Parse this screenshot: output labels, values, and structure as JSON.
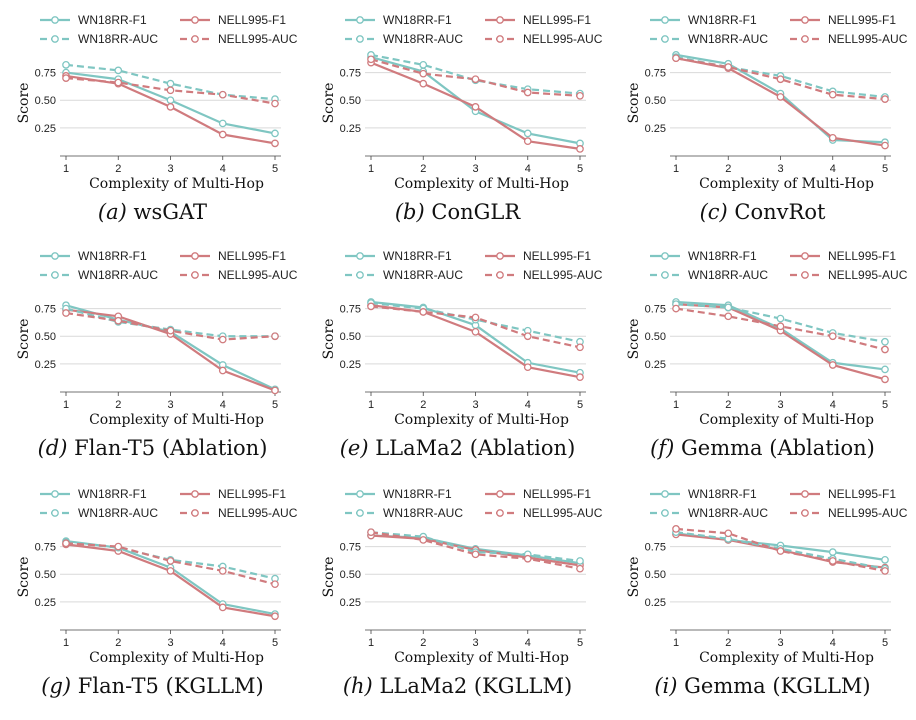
{
  "colors": {
    "wn": "#7fc6c2",
    "nell": "#d07b7e",
    "grid": "#d9d9d9",
    "axis": "#444444"
  },
  "chart_data": [
    {
      "type": "line",
      "caption_label": "(a)",
      "caption_title": "wsGAT",
      "x": [
        1,
        2,
        3,
        4,
        5
      ],
      "xlabel": "Complexity of Multi-Hop",
      "ylabel": "Score",
      "yticks": [
        "0.25",
        "0.50",
        "0.75"
      ],
      "ylim": [
        0.05,
        0.9
      ],
      "grid": "y",
      "series": [
        {
          "name": "WN18RR-F1",
          "style": "solid",
          "color": "#7fc6c2",
          "values": [
            0.75,
            0.69,
            0.5,
            0.29,
            0.2
          ]
        },
        {
          "name": "NELL995-F1",
          "style": "solid",
          "color": "#d07b7e",
          "values": [
            0.72,
            0.65,
            0.44,
            0.19,
            0.11
          ]
        },
        {
          "name": "WN18RR-AUC",
          "style": "dashed",
          "color": "#7fc6c2",
          "values": [
            0.82,
            0.77,
            0.65,
            0.55,
            0.51
          ]
        },
        {
          "name": "NELL995-AUC",
          "style": "dashed",
          "color": "#d07b7e",
          "values": [
            0.7,
            0.66,
            0.59,
            0.55,
            0.47
          ]
        }
      ]
    },
    {
      "type": "line",
      "caption_label": "(b)",
      "caption_title": "ConGLR",
      "x": [
        1,
        2,
        3,
        4,
        5
      ],
      "xlabel": "Complexity of Multi-Hop",
      "ylabel": "Score",
      "yticks": [
        "0.25",
        "0.50",
        "0.75"
      ],
      "ylim": [
        0.05,
        0.9
      ],
      "grid": "y",
      "series": [
        {
          "name": "WN18RR-F1",
          "style": "solid",
          "color": "#7fc6c2",
          "values": [
            0.89,
            0.76,
            0.4,
            0.2,
            0.11
          ]
        },
        {
          "name": "NELL995-F1",
          "style": "solid",
          "color": "#d07b7e",
          "values": [
            0.84,
            0.65,
            0.44,
            0.13,
            0.06
          ]
        },
        {
          "name": "WN18RR-AUC",
          "style": "dashed",
          "color": "#7fc6c2",
          "values": [
            0.91,
            0.82,
            0.68,
            0.6,
            0.56
          ]
        },
        {
          "name": "NELL995-AUC",
          "style": "dashed",
          "color": "#d07b7e",
          "values": [
            0.87,
            0.74,
            0.69,
            0.57,
            0.54
          ]
        }
      ]
    },
    {
      "type": "line",
      "caption_label": "(c)",
      "caption_title": "ConvRot",
      "x": [
        1,
        2,
        3,
        4,
        5
      ],
      "xlabel": "Complexity of Multi-Hop",
      "ylabel": "Score",
      "yticks": [
        "0.25",
        "0.50",
        "0.75"
      ],
      "ylim": [
        0.05,
        0.9
      ],
      "grid": "y",
      "series": [
        {
          "name": "WN18RR-F1",
          "style": "solid",
          "color": "#7fc6c2",
          "values": [
            0.91,
            0.83,
            0.56,
            0.14,
            0.12
          ]
        },
        {
          "name": "NELL995-F1",
          "style": "solid",
          "color": "#d07b7e",
          "values": [
            0.88,
            0.79,
            0.53,
            0.16,
            0.09
          ]
        },
        {
          "name": "WN18RR-AUC",
          "style": "dashed",
          "color": "#7fc6c2",
          "values": [
            0.89,
            0.8,
            0.72,
            0.58,
            0.53
          ]
        },
        {
          "name": "NELL995-AUC",
          "style": "dashed",
          "color": "#d07b7e",
          "values": [
            0.88,
            0.8,
            0.69,
            0.55,
            0.51
          ]
        }
      ]
    },
    {
      "type": "line",
      "caption_label": "(d)",
      "caption_title": "Flan-T5 (Ablation)",
      "x": [
        1,
        2,
        3,
        4,
        5
      ],
      "xlabel": "Complexity of Multi-Hop",
      "ylabel": "Score",
      "yticks": [
        "0.25",
        "0.50",
        "0.75"
      ],
      "ylim": [
        0.05,
        0.9
      ],
      "grid": "y",
      "series": [
        {
          "name": "WN18RR-F1",
          "style": "solid",
          "color": "#7fc6c2",
          "values": [
            0.78,
            0.65,
            0.54,
            0.24,
            0.02
          ]
        },
        {
          "name": "NELL995-F1",
          "style": "solid",
          "color": "#d07b7e",
          "values": [
            0.74,
            0.68,
            0.52,
            0.19,
            0.01
          ]
        },
        {
          "name": "WN18RR-AUC",
          "style": "dashed",
          "color": "#7fc6c2",
          "values": [
            0.75,
            0.63,
            0.56,
            0.5,
            0.5
          ]
        },
        {
          "name": "NELL995-AUC",
          "style": "dashed",
          "color": "#d07b7e",
          "values": [
            0.71,
            0.64,
            0.55,
            0.47,
            0.5
          ]
        }
      ]
    },
    {
      "type": "line",
      "caption_label": "(e)",
      "caption_title": "LLaMa2 (Ablation)",
      "x": [
        1,
        2,
        3,
        4,
        5
      ],
      "xlabel": "Complexity of Multi-Hop",
      "ylabel": "Score",
      "yticks": [
        "0.25",
        "0.50",
        "0.75"
      ],
      "ylim": [
        0.05,
        0.9
      ],
      "grid": "y",
      "series": [
        {
          "name": "WN18RR-F1",
          "style": "solid",
          "color": "#7fc6c2",
          "values": [
            0.81,
            0.76,
            0.6,
            0.26,
            0.17
          ]
        },
        {
          "name": "NELL995-F1",
          "style": "solid",
          "color": "#d07b7e",
          "values": [
            0.78,
            0.72,
            0.54,
            0.22,
            0.13
          ]
        },
        {
          "name": "WN18RR-AUC",
          "style": "dashed",
          "color": "#7fc6c2",
          "values": [
            0.8,
            0.75,
            0.65,
            0.55,
            0.45
          ]
        },
        {
          "name": "NELL995-AUC",
          "style": "dashed",
          "color": "#d07b7e",
          "values": [
            0.77,
            0.72,
            0.67,
            0.5,
            0.4
          ]
        }
      ]
    },
    {
      "type": "line",
      "caption_label": "(f)",
      "caption_title": "Gemma (Ablation)",
      "x": [
        1,
        2,
        3,
        4,
        5
      ],
      "xlabel": "Complexity of Multi-Hop",
      "ylabel": "Score",
      "yticks": [
        "0.25",
        "0.50",
        "0.75"
      ],
      "ylim": [
        0.05,
        0.9
      ],
      "grid": "y",
      "series": [
        {
          "name": "WN18RR-F1",
          "style": "solid",
          "color": "#7fc6c2",
          "values": [
            0.81,
            0.78,
            0.57,
            0.26,
            0.2
          ]
        },
        {
          "name": "NELL995-F1",
          "style": "solid",
          "color": "#d07b7e",
          "values": [
            0.79,
            0.76,
            0.55,
            0.24,
            0.11
          ]
        },
        {
          "name": "WN18RR-AUC",
          "style": "dashed",
          "color": "#7fc6c2",
          "values": [
            0.79,
            0.76,
            0.66,
            0.53,
            0.45
          ]
        },
        {
          "name": "NELL995-AUC",
          "style": "dashed",
          "color": "#d07b7e",
          "values": [
            0.75,
            0.68,
            0.59,
            0.5,
            0.38
          ]
        }
      ]
    },
    {
      "type": "line",
      "caption_label": "(g)",
      "caption_title": "Flan-T5 (KGLLM)",
      "x": [
        1,
        2,
        3,
        4,
        5
      ],
      "xlabel": "Complexity of Multi-Hop",
      "ylabel": "Score",
      "yticks": [
        "0.25",
        "0.50",
        "0.75"
      ],
      "ylim": [
        0.05,
        0.9
      ],
      "grid": "y",
      "series": [
        {
          "name": "WN18RR-F1",
          "style": "solid",
          "color": "#7fc6c2",
          "values": [
            0.8,
            0.74,
            0.56,
            0.23,
            0.14
          ]
        },
        {
          "name": "NELL995-F1",
          "style": "solid",
          "color": "#d07b7e",
          "values": [
            0.77,
            0.71,
            0.53,
            0.2,
            0.12
          ]
        },
        {
          "name": "WN18RR-AUC",
          "style": "dashed",
          "color": "#7fc6c2",
          "values": [
            0.79,
            0.74,
            0.63,
            0.57,
            0.46
          ]
        },
        {
          "name": "NELL995-AUC",
          "style": "dashed",
          "color": "#d07b7e",
          "values": [
            0.78,
            0.75,
            0.62,
            0.53,
            0.41
          ]
        }
      ]
    },
    {
      "type": "line",
      "caption_label": "(h)",
      "caption_title": "LLaMa2 (KGLLM)",
      "x": [
        1,
        2,
        3,
        4,
        5
      ],
      "xlabel": "Complexity of Multi-Hop",
      "ylabel": "Score",
      "yticks": [
        "0.25",
        "0.50",
        "0.75"
      ],
      "ylim": [
        0.05,
        0.9
      ],
      "grid": "y",
      "series": [
        {
          "name": "WN18RR-F1",
          "style": "solid",
          "color": "#7fc6c2",
          "values": [
            0.85,
            0.83,
            0.73,
            0.67,
            0.6
          ]
        },
        {
          "name": "NELL995-F1",
          "style": "solid",
          "color": "#d07b7e",
          "values": [
            0.85,
            0.82,
            0.72,
            0.65,
            0.58
          ]
        },
        {
          "name": "WN18RR-AUC",
          "style": "dashed",
          "color": "#7fc6c2",
          "values": [
            0.88,
            0.84,
            0.7,
            0.68,
            0.62
          ]
        },
        {
          "name": "NELL995-AUC",
          "style": "dashed",
          "color": "#d07b7e",
          "values": [
            0.88,
            0.81,
            0.68,
            0.64,
            0.55
          ]
        }
      ]
    },
    {
      "type": "line",
      "caption_label": "(i)",
      "caption_title": "Gemma (KGLLM)",
      "x": [
        1,
        2,
        3,
        4,
        5
      ],
      "xlabel": "Complexity of Multi-Hop",
      "ylabel": "Score",
      "yticks": [
        "0.25",
        "0.50",
        "0.75"
      ],
      "ylim": [
        0.05,
        0.9
      ],
      "grid": "y",
      "series": [
        {
          "name": "WN18RR-F1",
          "style": "solid",
          "color": "#7fc6c2",
          "values": [
            0.87,
            0.81,
            0.76,
            0.7,
            0.63
          ]
        },
        {
          "name": "NELL995-F1",
          "style": "solid",
          "color": "#d07b7e",
          "values": [
            0.86,
            0.81,
            0.72,
            0.61,
            0.56
          ]
        },
        {
          "name": "WN18RR-AUC",
          "style": "dashed",
          "color": "#7fc6c2",
          "values": [
            0.88,
            0.82,
            0.73,
            0.64,
            0.55
          ]
        },
        {
          "name": "NELL995-AUC",
          "style": "dashed",
          "color": "#d07b7e",
          "values": [
            0.91,
            0.87,
            0.71,
            0.62,
            0.53
          ]
        }
      ]
    }
  ]
}
